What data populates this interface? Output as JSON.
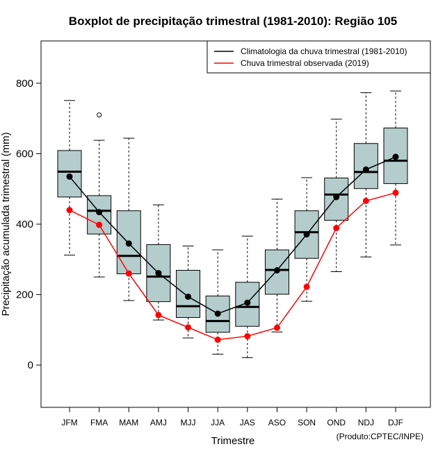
{
  "chart_data": {
    "type": "boxplot",
    "title": "Boxplot de precipitação trimestral (1981-2010): Região 105",
    "xlabel": "Trimestre",
    "ylabel": "Precipitação acumulada trimestral (mm)",
    "credit": "(Produto:CPTEC/INPE)",
    "ylim": [
      -120,
      920
    ],
    "yticks": [
      0,
      200,
      400,
      600,
      800
    ],
    "categories": [
      "JFM",
      "FMA",
      "MAM",
      "AMJ",
      "MJJ",
      "JJA",
      "JAS",
      "ASO",
      "SON",
      "OND",
      "NDJ",
      "DJF"
    ],
    "boxes": [
      {
        "min": 312,
        "q1": 477,
        "median": 549,
        "q3": 609,
        "max": 751,
        "outliers": []
      },
      {
        "min": 250,
        "q1": 372,
        "median": 438,
        "q3": 481,
        "max": 638,
        "outliers": [
          710
        ]
      },
      {
        "min": 183,
        "q1": 259,
        "median": 310,
        "q3": 438,
        "max": 644,
        "outliers": []
      },
      {
        "min": 128,
        "q1": 180,
        "median": 251,
        "q3": 342,
        "max": 455,
        "outliers": []
      },
      {
        "min": 77,
        "q1": 135,
        "median": 167,
        "q3": 269,
        "max": 338,
        "outliers": []
      },
      {
        "min": 31,
        "q1": 93,
        "median": 125,
        "q3": 196,
        "max": 327,
        "outliers": []
      },
      {
        "min": 21,
        "q1": 110,
        "median": 165,
        "q3": 235,
        "max": 366,
        "outliers": []
      },
      {
        "min": 94,
        "q1": 201,
        "median": 270,
        "q3": 327,
        "max": 471,
        "outliers": []
      },
      {
        "min": 181,
        "q1": 303,
        "median": 377,
        "q3": 438,
        "max": 532,
        "outliers": []
      },
      {
        "min": 265,
        "q1": 411,
        "median": 484,
        "q3": 531,
        "max": 698,
        "outliers": []
      },
      {
        "min": 307,
        "q1": 501,
        "median": 548,
        "q3": 629,
        "max": 773,
        "outliers": []
      },
      {
        "min": 341,
        "q1": 515,
        "median": 580,
        "q3": 673,
        "max": 778,
        "outliers": []
      }
    ],
    "series": [
      {
        "name": "Climatologia da chuva trimestral (1981-2010)",
        "color": "#000000",
        "values": [
          535,
          434,
          345,
          261,
          194,
          146,
          177,
          269,
          371,
          477,
          555,
          591
        ]
      },
      {
        "name": "Chuva trimestral observada (2019)",
        "color": "#ff0000",
        "values": [
          440,
          398,
          260,
          142,
          107,
          72,
          82,
          106,
          222,
          389,
          466,
          489
        ]
      }
    ],
    "legend_position": "top-right",
    "box_fill": "#b4cccc",
    "grid": false
  }
}
